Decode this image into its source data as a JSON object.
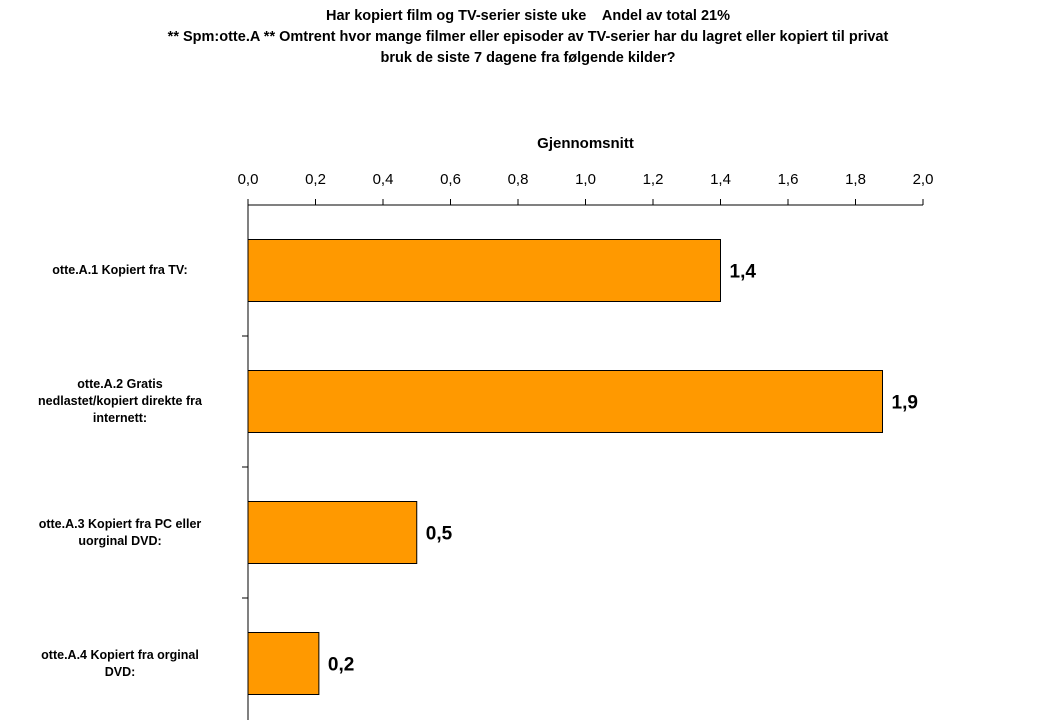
{
  "chart_data": {
    "type": "bar",
    "orientation": "horizontal",
    "title_lines": [
      "Har kopiert film og TV-serier siste uke    Andel av total 21%",
      "** Spm:otte.A ** Omtrent hvor mange filmer eller episoder av TV-serier har du lagret eller kopiert til privat",
      "bruk de siste 7 dagene fra følgende kilder?"
    ],
    "xlabel": "Gjennomsnitt",
    "xlabel_position": "top",
    "xlim": [
      0,
      2.0
    ],
    "ticks": [
      0.0,
      0.2,
      0.4,
      0.6,
      0.8,
      1.0,
      1.2,
      1.4,
      1.6,
      1.8,
      2.0
    ],
    "tick_labels": [
      "0,0",
      "0,2",
      "0,4",
      "0,6",
      "0,8",
      "1,0",
      "1,2",
      "1,4",
      "1,6",
      "1,8",
      "2,0"
    ],
    "categories": [
      "otte.A.1 Kopiert fra TV:",
      "otte.A.2 Gratis nedlastet/kopiert direkte fra internett:",
      "otte.A.3 Kopiert fra PC eller uorginal DVD:",
      "otte.A.4 Kopiert fra orginal DVD:"
    ],
    "category_lines": [
      [
        "otte.A.1 Kopiert fra TV:"
      ],
      [
        "otte.A.2 Gratis",
        "nedlastet/kopiert direkte fra",
        "internett:"
      ],
      [
        "otte.A.3 Kopiert fra PC eller",
        "uorginal DVD:"
      ],
      [
        "otte.A.4 Kopiert fra orginal",
        "DVD:"
      ]
    ],
    "values": [
      1.4,
      1.88,
      0.5,
      0.21
    ],
    "data_labels": [
      "1,4",
      "1,9",
      "0,5",
      "0,2"
    ],
    "bar_color": "#FF9900",
    "grid": false,
    "legend": "none"
  }
}
